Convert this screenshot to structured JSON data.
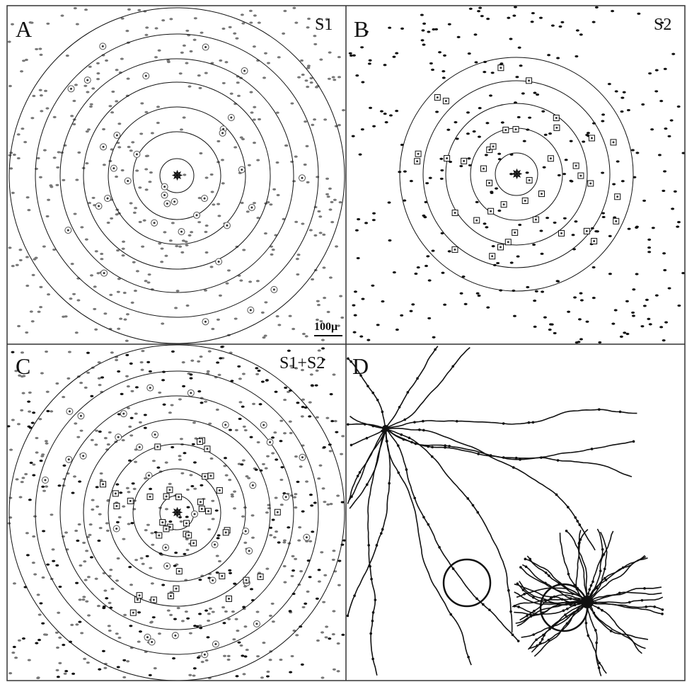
{
  "panels": [
    {
      "label": "A",
      "tag": "S1"
    },
    {
      "label": "B",
      "tag": "S2"
    },
    {
      "label": "C",
      "tag": "S1+S2"
    },
    {
      "label": "D"
    }
  ],
  "scale_bar": "100μ"
}
